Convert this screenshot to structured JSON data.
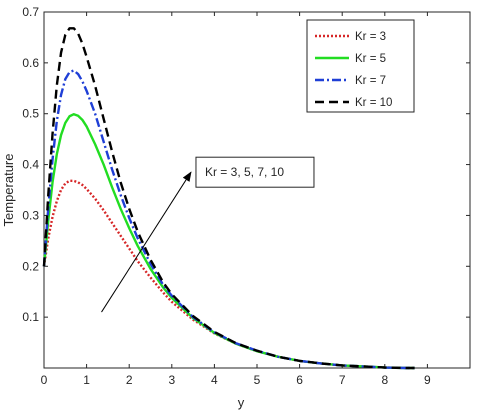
{
  "chart_data": {
    "type": "line",
    "title": "",
    "xlabel": "y",
    "ylabel": "Temperature",
    "xlim": [
      0,
      10
    ],
    "ylim": [
      0,
      0.7
    ],
    "xticks": [
      0,
      1,
      2,
      3,
      4,
      5,
      6,
      7,
      8,
      9
    ],
    "yticks": [
      0.1,
      0.2,
      0.3,
      0.4,
      0.5,
      0.6,
      0.7
    ],
    "grid": false,
    "legend_position": "top-right",
    "annotation": {
      "text": "Kr = 3, 5, 7, 10",
      "arrow_from": [
        1.35,
        0.11
      ],
      "arrow_to": [
        3.45,
        0.385
      ]
    },
    "series": [
      {
        "name": "Kr = 3",
        "color": "#d62728",
        "style": "dotted",
        "x": [
          0,
          0.1,
          0.2,
          0.3,
          0.4,
          0.5,
          0.6,
          0.7,
          0.8,
          0.9,
          1.0,
          1.2,
          1.4,
          1.6,
          1.8,
          2.0,
          2.2,
          2.5,
          2.8,
          3.0,
          3.5,
          4.0,
          4.5,
          5.0,
          5.5,
          6.0,
          6.5,
          7.0,
          7.5,
          8.0,
          8.5,
          8.7
        ],
        "y": [
          0.2,
          0.255,
          0.297,
          0.328,
          0.35,
          0.363,
          0.368,
          0.368,
          0.365,
          0.36,
          0.352,
          0.333,
          0.31,
          0.285,
          0.26,
          0.235,
          0.21,
          0.178,
          0.148,
          0.13,
          0.095,
          0.068,
          0.048,
          0.033,
          0.022,
          0.014,
          0.009,
          0.005,
          0.003,
          0.001,
          0.0,
          0.0
        ]
      },
      {
        "name": "Kr = 5",
        "color": "#22dd22",
        "style": "solid",
        "x": [
          0,
          0.1,
          0.2,
          0.3,
          0.4,
          0.5,
          0.6,
          0.7,
          0.8,
          0.9,
          1.0,
          1.2,
          1.4,
          1.6,
          1.8,
          2.0,
          2.2,
          2.5,
          2.8,
          3.0,
          3.5,
          4.0,
          4.5,
          5.0,
          5.5,
          6.0,
          6.5,
          7.0,
          7.5,
          8.0,
          8.5,
          8.7
        ],
        "y": [
          0.2,
          0.29,
          0.365,
          0.42,
          0.458,
          0.482,
          0.495,
          0.499,
          0.496,
          0.488,
          0.475,
          0.44,
          0.4,
          0.355,
          0.313,
          0.275,
          0.24,
          0.195,
          0.158,
          0.138,
          0.098,
          0.069,
          0.048,
          0.033,
          0.022,
          0.014,
          0.009,
          0.005,
          0.003,
          0.001,
          0.0,
          0.0
        ]
      },
      {
        "name": "Kr = 7",
        "color": "#1f3fd6",
        "style": "dashdot",
        "x": [
          0,
          0.1,
          0.2,
          0.3,
          0.4,
          0.5,
          0.6,
          0.7,
          0.8,
          0.9,
          1.0,
          1.2,
          1.4,
          1.6,
          1.8,
          2.0,
          2.2,
          2.5,
          2.8,
          3.0,
          3.5,
          4.0,
          4.5,
          5.0,
          5.5,
          6.0,
          6.5,
          7.0,
          7.5,
          8.0,
          8.5,
          8.7
        ],
        "y": [
          0.2,
          0.315,
          0.41,
          0.485,
          0.537,
          0.568,
          0.582,
          0.585,
          0.578,
          0.564,
          0.545,
          0.5,
          0.445,
          0.39,
          0.34,
          0.295,
          0.255,
          0.205,
          0.163,
          0.142,
          0.1,
          0.07,
          0.049,
          0.034,
          0.022,
          0.014,
          0.009,
          0.005,
          0.003,
          0.001,
          0.0,
          0.0
        ]
      },
      {
        "name": "Kr = 10",
        "color": "#000000",
        "style": "dashed",
        "x": [
          0,
          0.1,
          0.2,
          0.3,
          0.4,
          0.5,
          0.6,
          0.7,
          0.8,
          0.9,
          1.0,
          1.2,
          1.4,
          1.6,
          1.8,
          2.0,
          2.2,
          2.5,
          2.8,
          3.0,
          3.5,
          4.0,
          4.5,
          5.0,
          5.5,
          6.0,
          6.5,
          7.0,
          7.5,
          8.0,
          8.5,
          8.7
        ],
        "y": [
          0.2,
          0.34,
          0.46,
          0.555,
          0.62,
          0.655,
          0.668,
          0.668,
          0.658,
          0.638,
          0.612,
          0.555,
          0.49,
          0.425,
          0.365,
          0.313,
          0.268,
          0.213,
          0.168,
          0.145,
          0.102,
          0.071,
          0.049,
          0.034,
          0.022,
          0.014,
          0.009,
          0.005,
          0.003,
          0.001,
          0.0,
          0.0
        ]
      }
    ]
  }
}
